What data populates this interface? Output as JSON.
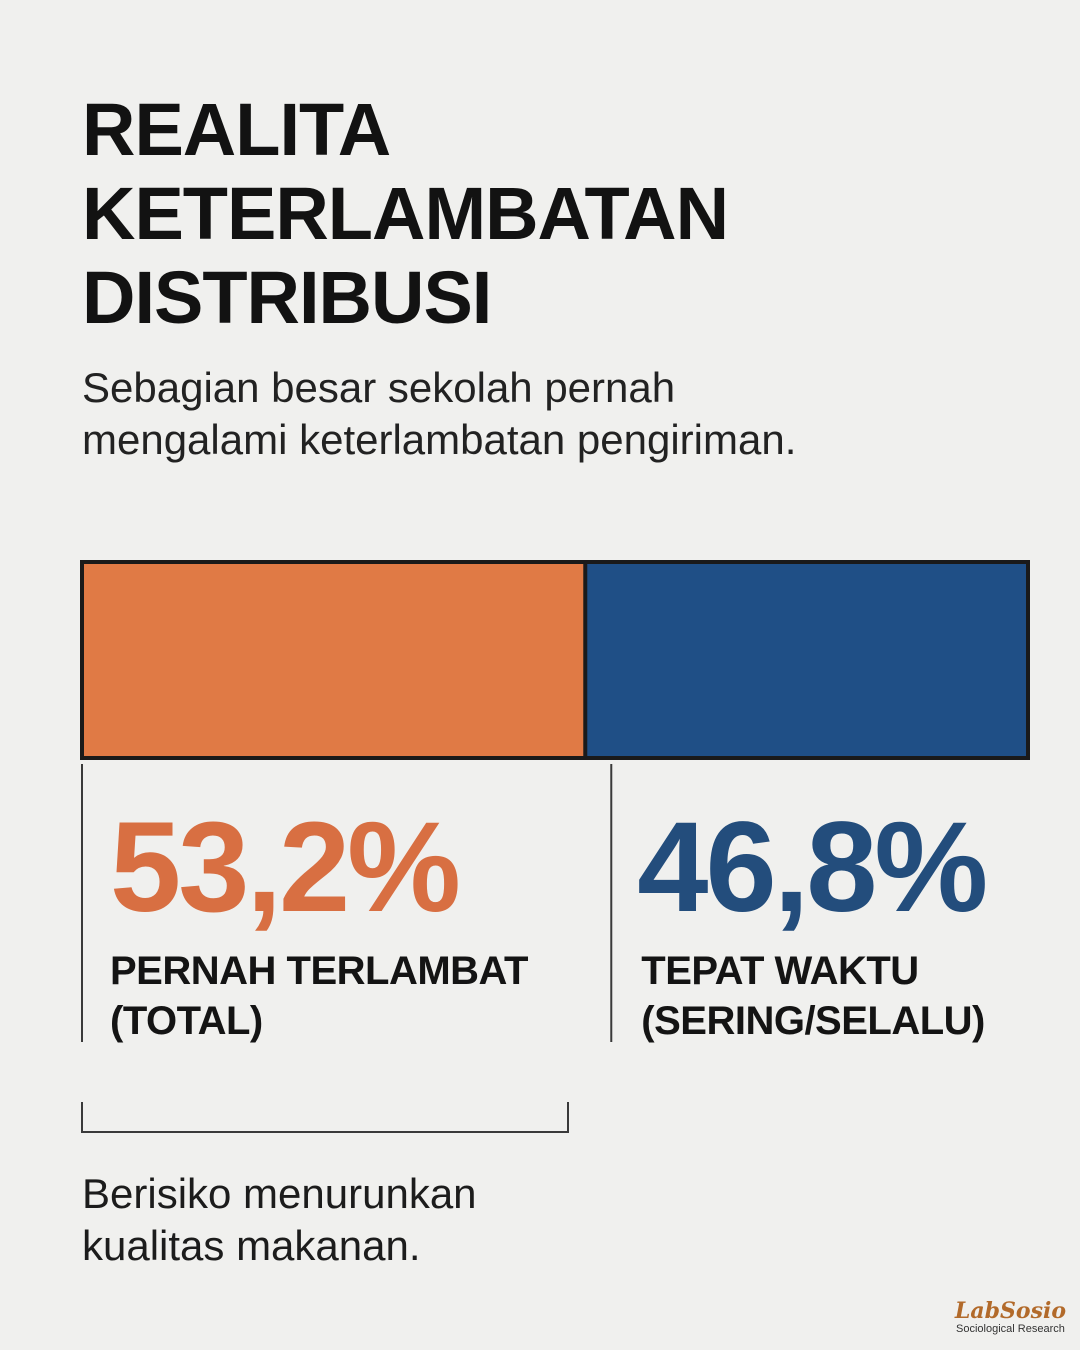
{
  "header": {
    "title_lines": [
      "REALITA",
      "KETERLAMBATAN",
      "DISTRIBUSI"
    ],
    "subtitle_lines": [
      "Sebagian besar sekolah pernah",
      "mengalami keterlambatan pengiriman."
    ]
  },
  "chart_data": {
    "type": "bar",
    "orientation": "horizontal-stacked-100",
    "categories": [
      "PERNAH TERLAMBAT (TOTAL)",
      "TEPAT WAKTU (SERING/SELALU)"
    ],
    "values": [
      53.2,
      46.8
    ],
    "value_labels": [
      "53,2%",
      "46,8%"
    ],
    "label_lines": [
      [
        "PERNAH TERLAMBAT",
        "(TOTAL)"
      ],
      [
        "TEPAT WAKTU",
        "(SERING/SELALU)"
      ]
    ],
    "colors": [
      "#e07a45",
      "#1f4f86"
    ],
    "value_colors": [
      "#d86f42",
      "#234d7c"
    ],
    "xlim": [
      0,
      100
    ]
  },
  "note": {
    "lines": [
      "Berisiko menurunkan",
      "kualitas makanan."
    ]
  },
  "brand": {
    "name": "LabSosio",
    "tagline": "Sociological Research"
  }
}
